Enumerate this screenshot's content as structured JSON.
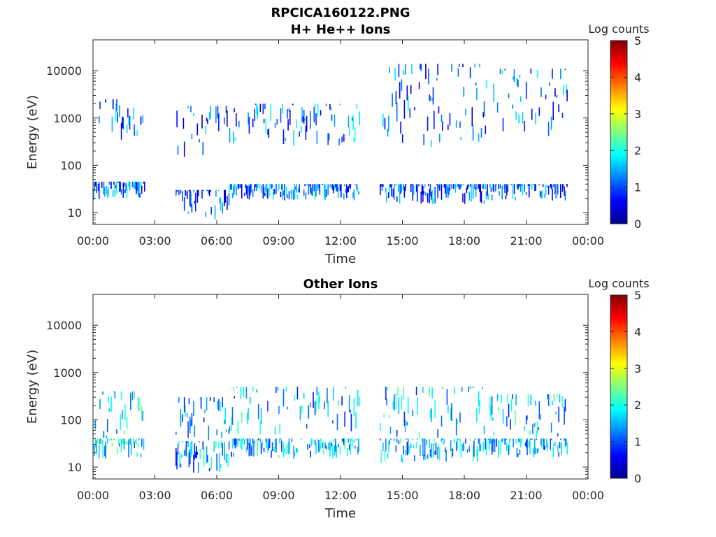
{
  "figure_title": "RPCICA160122.PNG",
  "chart_data": [
    {
      "type": "heatmap",
      "title": "H+ He++ Ions",
      "xlabel": "Time",
      "ylabel": "Energy (eV)",
      "x_tick_labels": [
        "00:00",
        "03:00",
        "06:00",
        "09:00",
        "12:00",
        "15:00",
        "18:00",
        "21:00",
        "00:00"
      ],
      "x_range_hours": [
        0,
        24
      ],
      "y_scale": "log",
      "y_tick_values": [
        10,
        100,
        1000,
        10000
      ],
      "y_tick_labels": [
        "10",
        "100",
        "1000",
        "10000"
      ],
      "y_range_eV": [
        5.6,
        45000
      ],
      "colorbar": {
        "label": "Log counts",
        "range": [
          0,
          5
        ],
        "tick_labels": [
          "0",
          "1",
          "2",
          "3",
          "4",
          "5"
        ],
        "colormap": "jet"
      },
      "data_gaps_hours": [
        [
          2.5,
          4.0
        ],
        [
          12.9,
          13.9
        ]
      ],
      "activity_segments": [
        {
          "hours": [
            0.0,
            2.5
          ],
          "bands_eV": [
            [
              18,
              45
            ],
            [
              280,
              2500
            ]
          ],
          "typical_log_counts": 1.2
        },
        {
          "hours": [
            4.0,
            6.6
          ],
          "bands_eV": [
            [
              7,
              30
            ],
            [
              150,
              1800
            ]
          ],
          "typical_log_counts": 1.0
        },
        {
          "hours": [
            6.6,
            12.9
          ],
          "bands_eV": [
            [
              18,
              40
            ],
            [
              250,
              2000
            ]
          ],
          "typical_log_counts": 1.3
        },
        {
          "hours": [
            13.9,
            19.0
          ],
          "bands_eV": [
            [
              15,
              40
            ],
            [
              200,
              14000
            ]
          ],
          "typical_log_counts": 1.1
        },
        {
          "hours": [
            19.0,
            23.0
          ],
          "bands_eV": [
            [
              18,
              40
            ],
            [
              300,
              11000
            ]
          ],
          "typical_log_counts": 1.2
        }
      ]
    },
    {
      "type": "heatmap",
      "title": "Other Ions",
      "xlabel": "Time",
      "ylabel": "Energy (eV)",
      "x_tick_labels": [
        "00:00",
        "03:00",
        "06:00",
        "09:00",
        "12:00",
        "15:00",
        "18:00",
        "21:00",
        "00:00"
      ],
      "x_range_hours": [
        0,
        24
      ],
      "y_scale": "log",
      "y_tick_values": [
        10,
        100,
        1000,
        10000
      ],
      "y_tick_labels": [
        "10",
        "100",
        "1000",
        "10000"
      ],
      "y_range_eV": [
        5.6,
        45000
      ],
      "colorbar": {
        "label": "Log counts",
        "range": [
          0,
          5
        ],
        "tick_labels": [
          "0",
          "1",
          "2",
          "3",
          "4",
          "5"
        ],
        "colormap": "jet"
      },
      "data_gaps_hours": [
        [
          2.5,
          4.0
        ],
        [
          12.9,
          13.9
        ]
      ],
      "activity_segments": [
        {
          "hours": [
            0.0,
            2.5
          ],
          "bands_eV": [
            [
              15,
              40
            ],
            [
              40,
              400
            ]
          ],
          "typical_log_counts": 1.9
        },
        {
          "hours": [
            4.0,
            6.6
          ],
          "bands_eV": [
            [
              7,
              35
            ],
            [
              35,
              300
            ]
          ],
          "typical_log_counts": 1.5
        },
        {
          "hours": [
            6.6,
            12.9
          ],
          "bands_eV": [
            [
              15,
              40
            ],
            [
              40,
              500
            ]
          ],
          "typical_log_counts": 1.6
        },
        {
          "hours": [
            13.9,
            19.0
          ],
          "bands_eV": [
            [
              12,
              40
            ],
            [
              40,
              500
            ]
          ],
          "typical_log_counts": 1.7
        },
        {
          "hours": [
            19.0,
            23.0
          ],
          "bands_eV": [
            [
              15,
              40
            ],
            [
              40,
              350
            ]
          ],
          "typical_log_counts": 1.6
        }
      ]
    }
  ]
}
